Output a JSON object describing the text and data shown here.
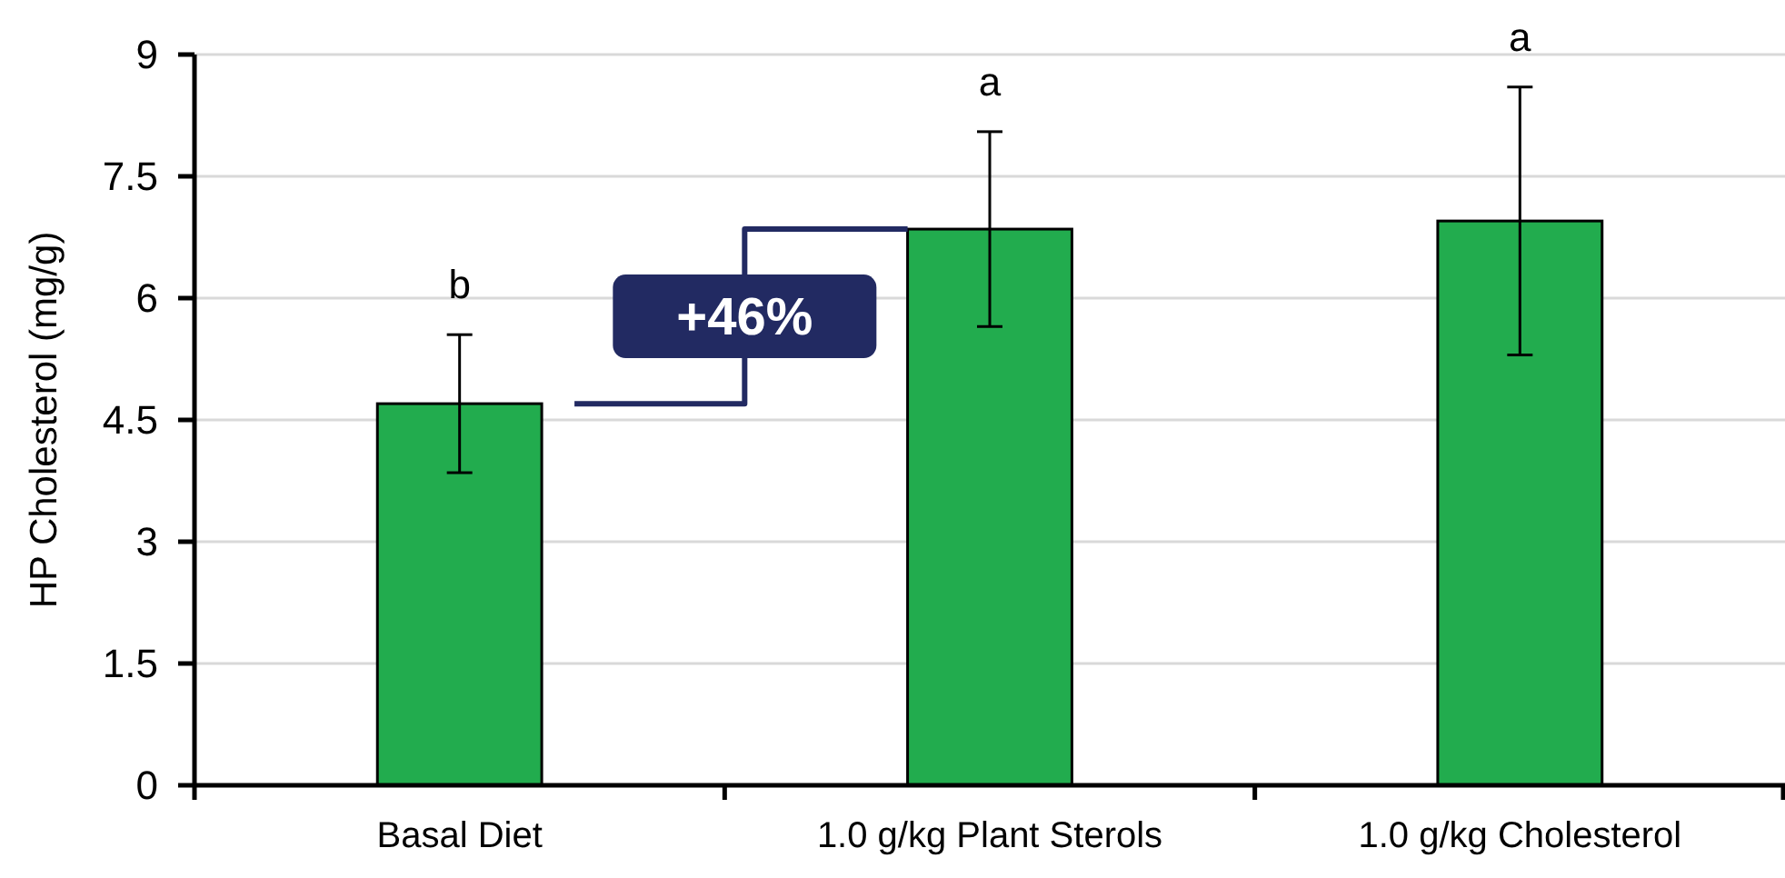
{
  "chart_data": {
    "type": "bar",
    "ylabel": "HP Cholesterol (mg/g)",
    "categories": [
      "Basal Diet",
      "1.0 g/kg Plant Sterols",
      "1.0 g/kg Cholesterol"
    ],
    "values": [
      4.7,
      6.85,
      6.95
    ],
    "errors": [
      0.85,
      1.2,
      1.65
    ],
    "color": "#22ac4e",
    "ylim": [
      0,
      9
    ],
    "yticks": [
      0,
      1.5,
      3,
      4.5,
      6,
      7.5,
      9
    ],
    "grid": "y",
    "annotations": [
      "b",
      "a",
      "a",
      "+46%"
    ]
  }
}
